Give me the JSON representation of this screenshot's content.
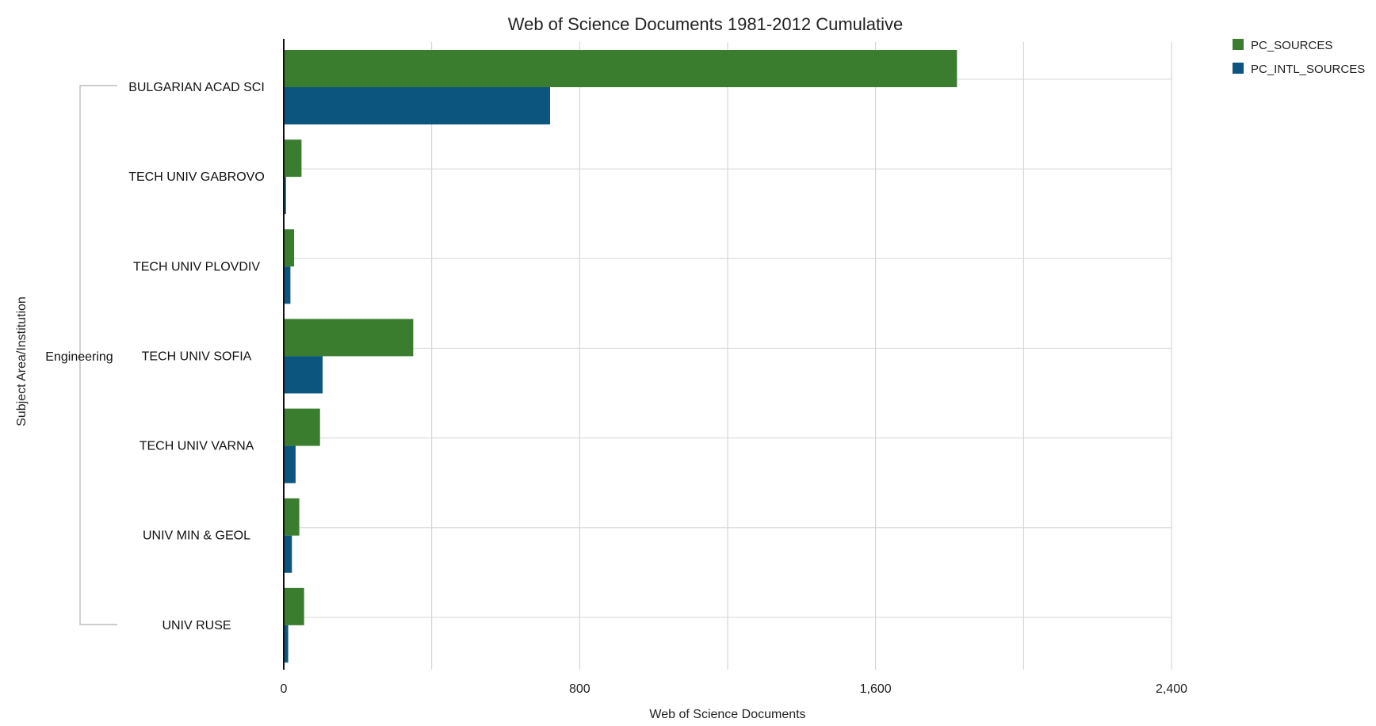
{
  "chart_data": {
    "type": "bar",
    "orientation": "horizontal",
    "title": "Web of Science Documents 1981-2012 Cumulative",
    "xlabel": "Web of Science Documents",
    "ylabel": "Subject Area/Institution",
    "group_label": "Engineering",
    "categories": [
      "BULGARIAN ACAD SCI",
      "TECH UNIV GABROVO",
      "TECH UNIV PLOVDIV",
      "TECH UNIV SOFIA",
      "TECH UNIV VARNA",
      "UNIV MIN & GEOL",
      "UNIV RUSE"
    ],
    "series": [
      {
        "name": "PC_SOURCES",
        "color": "#3a7d2f",
        "values": [
          1820,
          48,
          28,
          350,
          98,
          42,
          55
        ]
      },
      {
        "name": "PC_INTL_SOURCES",
        "color": "#0b557f",
        "values": [
          720,
          6,
          18,
          105,
          32,
          22,
          12
        ]
      }
    ],
    "xlim": [
      0,
      2400
    ],
    "xticks": [
      0,
      800,
      1600,
      2400
    ],
    "xtick_labels": [
      "0",
      "800",
      "1,600",
      "2,400"
    ],
    "gridlines": [
      0,
      400,
      800,
      1200,
      1600,
      2000,
      2400
    ],
    "grid": true,
    "legend_position": "top-right"
  }
}
